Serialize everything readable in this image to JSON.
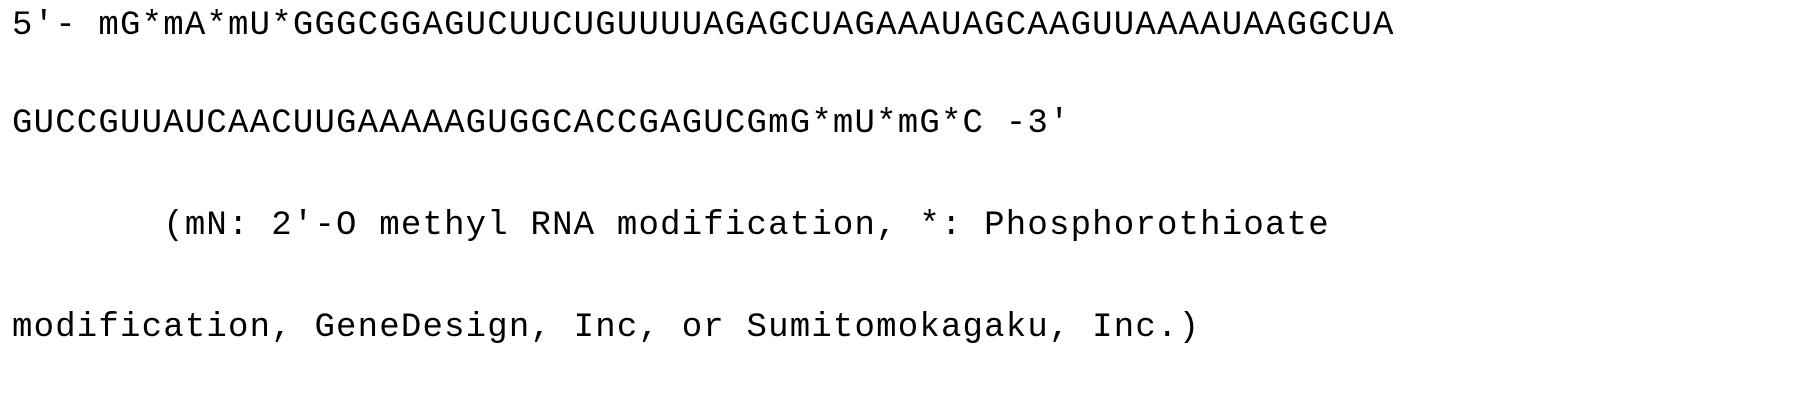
{
  "sequence": {
    "line1": "5'- mG*mA*mU*GGGCGGAGUCUUCUGUUUUAGAGCUAGAAAUAGCAAGUUAAAAUAAGGCUA",
    "line2": "GUCCGUUAUCAACUUGAAAAAGUGGCACCGAGUCGmG*mU*mG*C -3'"
  },
  "note": {
    "line1": "       (mN: 2'-O methyl RNA modification, *: Phosphorothioate",
    "line2": "modification, GeneDesign, Inc, or Sumitomokagaku, Inc.)"
  }
}
